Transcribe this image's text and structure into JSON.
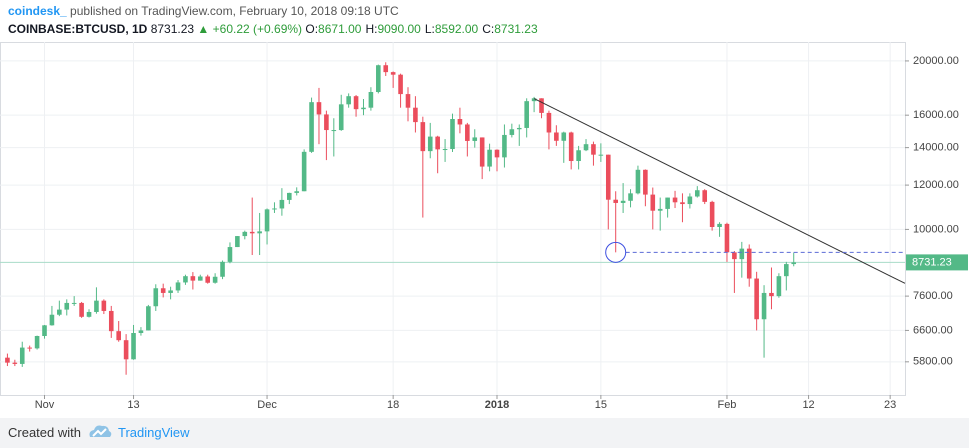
{
  "header": {
    "publisher": "coindesk_",
    "published": "published on TradingView.com, February 10, 2018 09:18 UTC",
    "symbol": "COINBASE:BTCUSD, 1D",
    "last": "8731.23",
    "change": "▲ +60.22 (+0.69%)",
    "ohlc": [
      {
        "label": "O:",
        "value": "8671.00"
      },
      {
        "label": "H:",
        "value": "9090.00"
      },
      {
        "label": "L:",
        "value": "8592.00"
      },
      {
        "label": "C:",
        "value": "8731.23"
      }
    ]
  },
  "footer": {
    "created": "Created with",
    "brand": "TradingView"
  },
  "chart_data": {
    "type": "candlestick",
    "log_scale": true,
    "grid": true,
    "up_color": "#53b987",
    "down_color": "#eb4d5c",
    "x": [
      "2017-10-27",
      "2017-10-28",
      "2017-10-29",
      "2017-10-30",
      "2017-10-31",
      "2017-11-01",
      "2017-11-02",
      "2017-11-03",
      "2017-11-04",
      "2017-11-05",
      "2017-11-06",
      "2017-11-07",
      "2017-11-08",
      "2017-11-09",
      "2017-11-10",
      "2017-11-11",
      "2017-11-12",
      "2017-11-13",
      "2017-11-14",
      "2017-11-15",
      "2017-11-16",
      "2017-11-17",
      "2017-11-18",
      "2017-11-19",
      "2017-11-20",
      "2017-11-21",
      "2017-11-22",
      "2017-11-23",
      "2017-11-24",
      "2017-11-25",
      "2017-11-26",
      "2017-11-27",
      "2017-11-28",
      "2017-11-29",
      "2017-11-30",
      "2017-12-01",
      "2017-12-02",
      "2017-12-03",
      "2017-12-04",
      "2017-12-05",
      "2017-12-06",
      "2017-12-07",
      "2017-12-08",
      "2017-12-09",
      "2017-12-10",
      "2017-12-11",
      "2017-12-12",
      "2017-12-13",
      "2017-12-14",
      "2017-12-15",
      "2017-12-16",
      "2017-12-17",
      "2017-12-18",
      "2017-12-19",
      "2017-12-20",
      "2017-12-21",
      "2017-12-22",
      "2017-12-23",
      "2017-12-24",
      "2017-12-25",
      "2017-12-26",
      "2017-12-27",
      "2017-12-28",
      "2017-12-29",
      "2017-12-30",
      "2017-12-31",
      "2018-01-01",
      "2018-01-02",
      "2018-01-03",
      "2018-01-04",
      "2018-01-05",
      "2018-01-06",
      "2018-01-07",
      "2018-01-08",
      "2018-01-09",
      "2018-01-10",
      "2018-01-11",
      "2018-01-12",
      "2018-01-13",
      "2018-01-14",
      "2018-01-15",
      "2018-01-16",
      "2018-01-17",
      "2018-01-18",
      "2018-01-19",
      "2018-01-20",
      "2018-01-21",
      "2018-01-22",
      "2018-01-23",
      "2018-01-24",
      "2018-01-25",
      "2018-01-26",
      "2018-01-27",
      "2018-01-28",
      "2018-01-29",
      "2018-01-30",
      "2018-01-31",
      "2018-02-01",
      "2018-02-02",
      "2018-02-03",
      "2018-02-04",
      "2018-02-05",
      "2018-02-06",
      "2018-02-07",
      "2018-02-08",
      "2018-02-09",
      "2018-02-10"
    ],
    "open": [
      5900,
      5780,
      5750,
      6150,
      6130,
      6450,
      6740,
      7040,
      7190,
      7390,
      7390,
      6980,
      7120,
      7460,
      7150,
      6580,
      6340,
      5860,
      6530,
      6600,
      7290,
      7850,
      7700,
      7780,
      8040,
      8250,
      8100,
      8240,
      8030,
      8230,
      8750,
      9300,
      9730,
      9900,
      9840,
      9920,
      10860,
      10900,
      11290,
      11620,
      11700,
      13760,
      16880,
      16050,
      15050,
      15050,
      16730,
      17300,
      16400,
      16500,
      17600,
      19650,
      19100,
      18900,
      17450,
      16500,
      15550,
      13800,
      14650,
      13900,
      13920,
      15750,
      15400,
      14390,
      14600,
      12950,
      13880,
      13450,
      14750,
      15100,
      15180,
      16950,
      17150,
      16150,
      14900,
      14400,
      14900,
      13250,
      13850,
      14200,
      13600,
      13600,
      11300,
      11150,
      11250,
      11600,
      12780,
      11540,
      10800,
      10880,
      11400,
      11180,
      11100,
      11450,
      11750,
      11200,
      10100,
      10230,
      9100,
      8850,
      9240,
      8170,
      6910,
      7700,
      7600,
      8250,
      8671
    ],
    "high": [
      6000,
      5850,
      6300,
      6200,
      6460,
      6750,
      7300,
      7460,
      7500,
      7600,
      7420,
      7200,
      7880,
      7500,
      7300,
      6860,
      6500,
      6750,
      6690,
      7330,
      7980,
      8000,
      7900,
      8120,
      8300,
      8390,
      8300,
      8300,
      8350,
      8800,
      9480,
      9730,
      9950,
      11400,
      10700,
      10900,
      11180,
      11850,
      11630,
      11890,
      13900,
      17200,
      17900,
      16300,
      15800,
      17400,
      17500,
      17380,
      17100,
      17950,
      19700,
      19890,
      19150,
      18980,
      17950,
      17300,
      15900,
      15500,
      14700,
      14500,
      16100,
      16500,
      15500,
      15100,
      14600,
      14230,
      13900,
      15400,
      15450,
      15400,
      17150,
      17250,
      17150,
      16300,
      15350,
      14950,
      14950,
      14100,
      14500,
      14350,
      14250,
      13600,
      11700,
      12100,
      11800,
      13000,
      12800,
      11880,
      11400,
      11400,
      11720,
      11600,
      11600,
      11950,
      11800,
      11250,
      10300,
      10280,
      9150,
      9500,
      9400,
      8400,
      7950,
      8550,
      8350,
      8750,
      9090
    ],
    "low": [
      5700,
      5700,
      5680,
      6050,
      6100,
      6380,
      6730,
      7000,
      7020,
      7300,
      6950,
      6960,
      7070,
      7060,
      6400,
      6300,
      5500,
      5850,
      6460,
      6600,
      7150,
      7560,
      7500,
      7700,
      7960,
      7810,
      8100,
      8000,
      8000,
      8150,
      8700,
      9300,
      9600,
      9000,
      9000,
      9400,
      10700,
      10580,
      11100,
      11500,
      11700,
      13700,
      14200,
      13300,
      13500,
      15000,
      16500,
      15900,
      16000,
      16300,
      17500,
      18800,
      17900,
      16500,
      15600,
      14900,
      10500,
      13400,
      12600,
      13200,
      13750,
      14850,
      13500,
      14000,
      12300,
      12700,
      12700,
      12900,
      14600,
      14100,
      14600,
      16200,
      15800,
      13900,
      14100,
      13150,
      12800,
      12800,
      13800,
      13000,
      13200,
      10000,
      9100,
      10700,
      10950,
      11550,
      11000,
      10000,
      9950,
      10500,
      10920,
      10300,
      10900,
      11400,
      11100,
      9950,
      9700,
      8750,
      7700,
      8200,
      7900,
      6600,
      5900,
      7200,
      7550,
      7780,
      8592
    ],
    "close": [
      5780,
      5750,
      6150,
      6130,
      6450,
      6740,
      7040,
      7190,
      7390,
      7390,
      6980,
      7120,
      7460,
      7150,
      6580,
      6340,
      5860,
      6530,
      6600,
      7290,
      7850,
      7700,
      7780,
      8040,
      8250,
      8100,
      8240,
      8030,
      8230,
      8750,
      9300,
      9730,
      9900,
      9840,
      9920,
      10860,
      10900,
      11290,
      11620,
      11700,
      13760,
      16880,
      16050,
      15050,
      15050,
      16730,
      17300,
      16400,
      16500,
      17600,
      19650,
      19100,
      18900,
      17450,
      16500,
      15550,
      13800,
      14650,
      13900,
      13920,
      15750,
      15400,
      14390,
      14600,
      12950,
      13880,
      13450,
      14750,
      15100,
      15180,
      16950,
      17150,
      16150,
      14900,
      14400,
      14900,
      13250,
      13850,
      14200,
      13600,
      13600,
      11300,
      11150,
      11250,
      11600,
      12780,
      11540,
      10800,
      10880,
      11400,
      11180,
      11100,
      11450,
      11750,
      11200,
      10100,
      10230,
      9100,
      8850,
      9240,
      8170,
      6910,
      7700,
      7600,
      8250,
      8671,
      8731.23
    ],
    "xlim": [
      "2017-10-26",
      "2018-02-25"
    ],
    "xticks": [
      {
        "value": "2017-11-01",
        "label": "Nov"
      },
      {
        "value": "2017-11-13",
        "label": "13"
      },
      {
        "value": "2017-12-01",
        "label": "Dec"
      },
      {
        "value": "2017-12-18",
        "label": "18"
      },
      {
        "value": "2018-01-01",
        "label": "2018"
      },
      {
        "value": "2018-01-15",
        "label": "15"
      },
      {
        "value": "2018-02-01",
        "label": "Feb"
      },
      {
        "value": "2018-02-12",
        "label": "12"
      },
      {
        "value": "2018-02-23",
        "label": "23"
      }
    ],
    "ylim": [
      5060,
      21620
    ],
    "yticks": [
      {
        "value": 5800,
        "label": "5800.00"
      },
      {
        "value": 6600,
        "label": "6600.00"
      },
      {
        "value": 7600,
        "label": "7600.00"
      },
      {
        "value": 10000,
        "label": "10000.00"
      },
      {
        "value": 12000,
        "label": "12000.00"
      },
      {
        "value": 14000,
        "label": "14000.00"
      },
      {
        "value": 16000,
        "label": "16000.00"
      },
      {
        "value": 20000,
        "label": "20000.00"
      }
    ],
    "trendline": {
      "x": [
        "2018-01-06",
        "2018-02-25"
      ],
      "y": [
        17130,
        8010
      ]
    },
    "marker": {
      "x": "2018-01-17",
      "y": 9100
    }
  }
}
